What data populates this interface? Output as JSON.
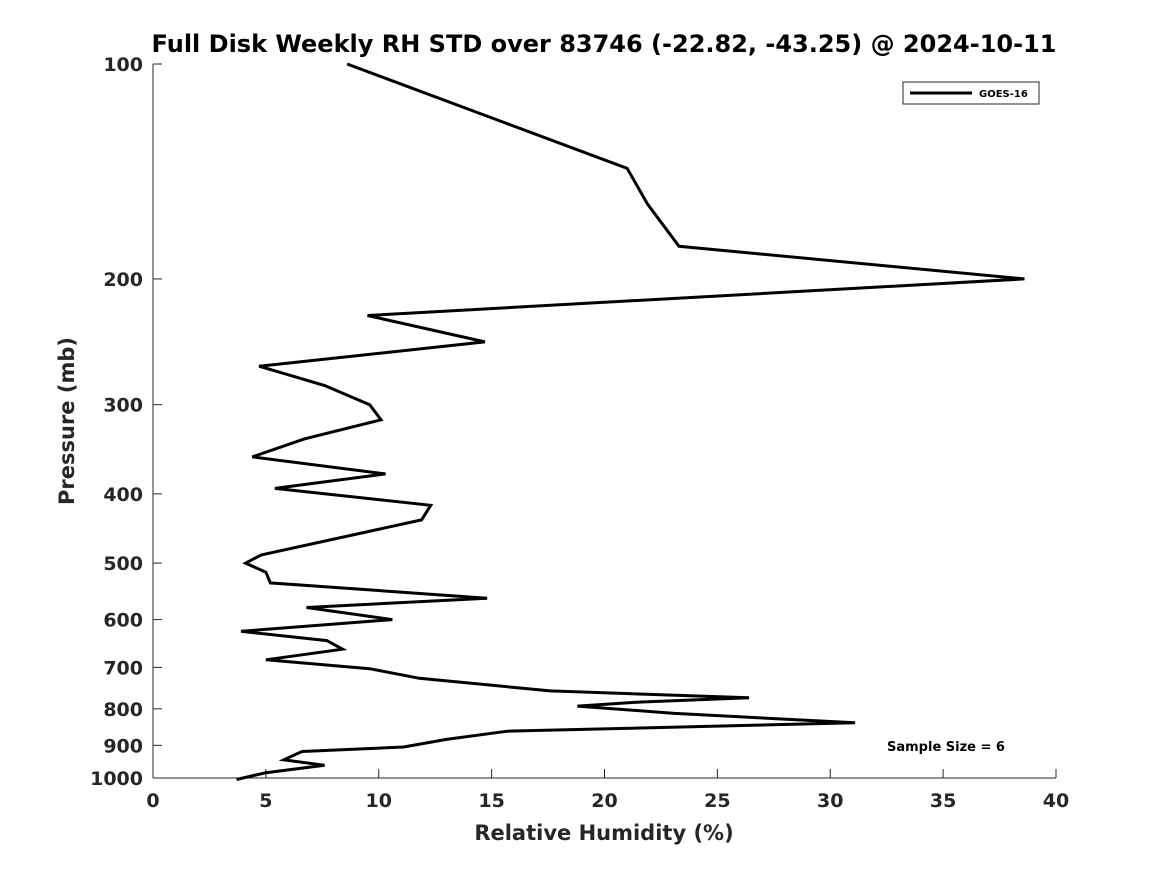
{
  "chart_data": {
    "type": "line",
    "title": "Full Disk Weekly RH STD over 83746 (-22.82, -43.25) @ 2024-10-11",
    "xlabel": "Relative Humidity (%)",
    "ylabel": "Pressure (mb)",
    "xlim": [
      0,
      40
    ],
    "ylim": [
      100,
      1000
    ],
    "yscale": "log",
    "y_reversed": true,
    "grid": false,
    "x_ticks": [
      0,
      5,
      10,
      15,
      20,
      25,
      30,
      35,
      40
    ],
    "y_ticks": [
      100,
      200,
      300,
      400,
      500,
      600,
      700,
      800,
      900,
      1000
    ],
    "legend_position": "top-right",
    "annotation": "Sample Size = 6",
    "series": [
      {
        "name": "GOES-16",
        "color": "#000000",
        "x": [
          8.6,
          21.0,
          21.9,
          23.3,
          38.6,
          9.5,
          14.7,
          4.7,
          7.6,
          9.6,
          10.1,
          6.7,
          4.4,
          10.3,
          5.4,
          12.3,
          11.9,
          4.8,
          4.1,
          5.0,
          5.2,
          14.8,
          6.8,
          10.6,
          3.9,
          7.7,
          8.4,
          5.0,
          9.6,
          11.8,
          17.6,
          26.4,
          21.5,
          18.8,
          23.1,
          31.1,
          15.7,
          13.0,
          11.1,
          6.6,
          5.8,
          7.6,
          5.0,
          3.7
        ],
        "y": [
          100,
          140,
          157,
          180,
          200,
          225,
          245,
          265,
          282,
          300,
          315,
          335,
          355,
          375,
          393,
          415,
          435,
          487,
          500,
          515,
          533,
          560,
          577,
          600,
          623,
          642,
          660,
          683,
          703,
          725,
          755,
          772,
          783,
          793,
          812,
          837,
          860,
          883,
          905,
          918,
          943,
          960,
          983,
          1005
        ]
      }
    ]
  }
}
